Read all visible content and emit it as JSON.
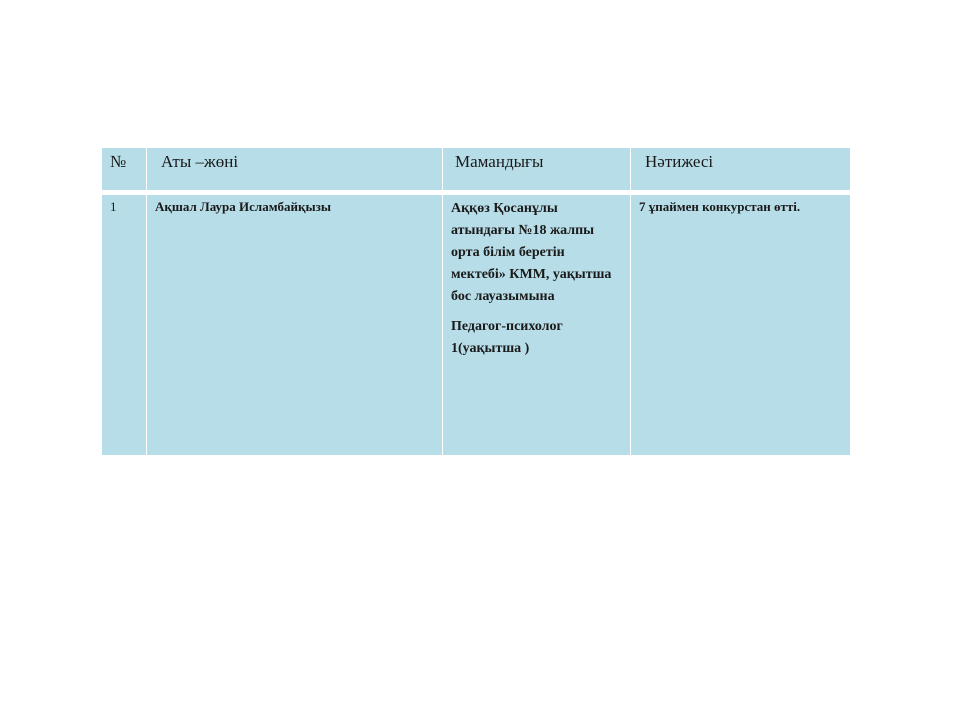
{
  "table": {
    "headers": [
      "№",
      "Аты –жөні",
      "Мамандығы",
      "Нәтижесі"
    ],
    "rows": [
      {
        "number": "1",
        "name": "Ақшал Лаура  Исламбайқызы",
        "specialty": "Аққөз Қосанұлы атындағы №18 жалпы орта білім беретін мектебі» КММ, уақытша бос лауазымына",
        "position": "Педагог-психолог 1(уақытша )",
        "result": "7  ұпаймен   конкурстан өтті."
      }
    ]
  },
  "colors": {
    "cell": "#b7dde8",
    "border": "#ffffff"
  }
}
